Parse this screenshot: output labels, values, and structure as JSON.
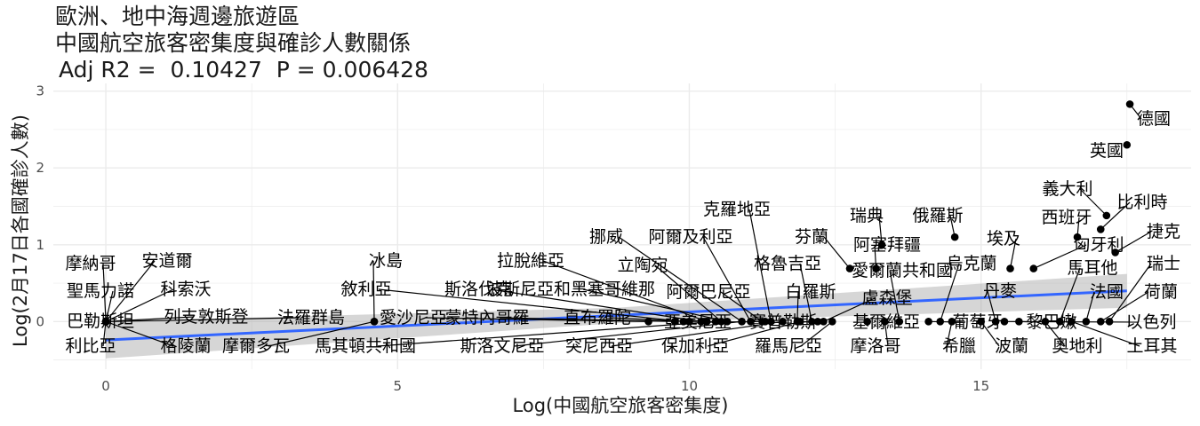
{
  "chart_data": {
    "type": "scatter",
    "title_lines": [
      "歐洲、地中海週邊旅遊區",
      "中國航空旅客密集度與確診人數關係"
    ],
    "stats": "Adj R2 =  0.10427  P = 0.006428",
    "xlabel": "Log(中國航空旅客密集度)",
    "ylabel": "Log(2月17日各國確診人數)",
    "xlim": [
      -0.9,
      18.6
    ],
    "ylim": [
      -0.62,
      3.1
    ],
    "xticks": [
      0,
      5,
      10,
      15
    ],
    "yticks": [
      0,
      1,
      2,
      3
    ],
    "grid": true,
    "fit": {
      "type": "linear",
      "color": "#3366FF",
      "x": [
        0,
        17.5
      ],
      "y": [
        -0.24,
        0.4
      ]
    },
    "points": [
      {
        "name": "德國",
        "x": 17.55,
        "y": 2.83
      },
      {
        "name": "英國",
        "x": 17.5,
        "y": 2.3
      },
      {
        "name": "義大利",
        "x": 17.15,
        "y": 1.38
      },
      {
        "name": "比利時",
        "x": 17.05,
        "y": 1.2
      },
      {
        "name": "西班牙",
        "x": 16.65,
        "y": 1.1
      },
      {
        "name": "捷克",
        "x": 17.3,
        "y": 0.9
      },
      {
        "name": "埃及",
        "x": 15.5,
        "y": 0.69
      },
      {
        "name": "匈牙利",
        "x": 15.9,
        "y": 0.69
      },
      {
        "name": "俄羅斯",
        "x": 14.55,
        "y": 1.1
      },
      {
        "name": "瑞典",
        "x": 13.3,
        "y": 1.0
      },
      {
        "name": "芬蘭",
        "x": 12.75,
        "y": 0.69
      },
      {
        "name": "阿塞拜疆",
        "x": 13.2,
        "y": 0.69
      },
      {
        "name": "克羅地亞",
        "x": 11.4,
        "y": 0.0
      },
      {
        "name": "挪威",
        "x": 10.9,
        "y": 0.0
      },
      {
        "name": "阿爾及利亞",
        "x": 11.05,
        "y": 0.0
      },
      {
        "name": "格魯吉亞",
        "x": 12.1,
        "y": 0.0
      },
      {
        "name": "愛爾蘭共和國",
        "x": 13.6,
        "y": 0.0
      },
      {
        "name": "烏克蘭",
        "x": 14.3,
        "y": 0.0
      },
      {
        "name": "馬耳他",
        "x": 16.35,
        "y": 0.0
      },
      {
        "name": "瑞士",
        "x": 17.2,
        "y": 0.0
      },
      {
        "name": "冰島",
        "x": 4.6,
        "y": 0.0
      },
      {
        "name": "拉脫維亞",
        "x": 10.3,
        "y": 0.0
      },
      {
        "name": "立陶宛",
        "x": 10.55,
        "y": 0.0
      },
      {
        "name": "敘利亞",
        "x": 9.9,
        "y": 0.0
      },
      {
        "name": "斯洛伐克",
        "x": 10.2,
        "y": 0.0
      },
      {
        "name": "波斯尼亞和黑塞哥維那",
        "x": 10.65,
        "y": 0.0
      },
      {
        "name": "阿爾巴尼亞",
        "x": 11.25,
        "y": 0.0
      },
      {
        "name": "白羅斯",
        "x": 11.85,
        "y": 0.0
      },
      {
        "name": "盧森堡",
        "x": 12.3,
        "y": 0.0
      },
      {
        "name": "丹麥",
        "x": 15.25,
        "y": 0.0
      },
      {
        "name": "法國",
        "x": 16.8,
        "y": 0.0
      },
      {
        "name": "荷蘭",
        "x": 17.05,
        "y": 0.0
      },
      {
        "name": "摩納哥",
        "x": 0.0,
        "y": 0.0
      },
      {
        "name": "安道爾",
        "x": 0.0,
        "y": 0.0
      },
      {
        "name": "聖馬力諾",
        "x": 0.0,
        "y": 0.0
      },
      {
        "name": "科索沃",
        "x": 0.0,
        "y": 0.0
      },
      {
        "name": "巴勒斯坦",
        "x": 0.0,
        "y": 0.0
      },
      {
        "name": "列支敦斯登",
        "x": 0.0,
        "y": 0.0
      },
      {
        "name": "法羅群島",
        "x": 0.0,
        "y": 0.0
      },
      {
        "name": "利比亞",
        "x": 0.0,
        "y": 0.0
      },
      {
        "name": "格陵蘭",
        "x": 0.0,
        "y": 0.0
      },
      {
        "name": "摩爾多瓦",
        "x": 4.6,
        "y": 0.0
      },
      {
        "name": "愛沙尼亞",
        "x": 9.3,
        "y": 0.0
      },
      {
        "name": "蒙特內哥羅",
        "x": 9.75,
        "y": 0.0
      },
      {
        "name": "直布羅陀",
        "x": 10.0,
        "y": 0.0
      },
      {
        "name": "馬其頓共和國",
        "x": 10.45,
        "y": 0.0
      },
      {
        "name": "斯洛文尼亞",
        "x": 10.9,
        "y": 0.0
      },
      {
        "name": "亞美尼亞",
        "x": 11.3,
        "y": 0.0
      },
      {
        "name": "突尼西亞",
        "x": 11.6,
        "y": 0.0
      },
      {
        "name": "保加利亞",
        "x": 11.9,
        "y": 0.0
      },
      {
        "name": "賽普勒斯",
        "x": 12.2,
        "y": 0.0
      },
      {
        "name": "羅馬尼亞",
        "x": 12.45,
        "y": 0.0
      },
      {
        "name": "基爾維亞",
        "x": 13.05,
        "y": 0.0
      },
      {
        "name": "摩洛哥",
        "x": 13.35,
        "y": 0.0
      },
      {
        "name": "葡萄牙",
        "x": 14.1,
        "y": 0.0
      },
      {
        "name": "希臘",
        "x": 14.5,
        "y": 0.0
      },
      {
        "name": "波蘭",
        "x": 15.0,
        "y": 0.0
      },
      {
        "name": "黎巴嫩",
        "x": 15.65,
        "y": 0.0
      },
      {
        "name": "奧地利",
        "x": 16.1,
        "y": 0.0
      },
      {
        "name": "土耳其",
        "x": 16.55,
        "y": 0.0
      },
      {
        "name": "以色列",
        "x": 15.4,
        "y": 0.0
      }
    ]
  }
}
